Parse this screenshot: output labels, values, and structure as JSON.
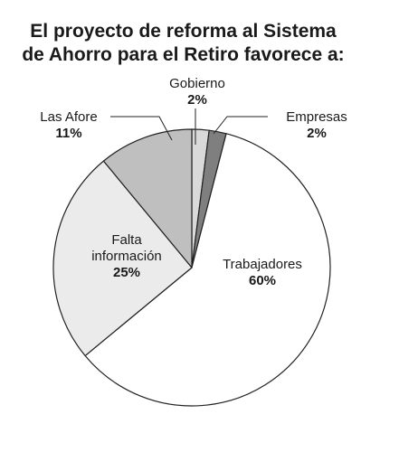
{
  "title_lines": [
    "El proyecto de reforma al Sistema",
    "de Ahorro para el Retiro favorece a:"
  ],
  "chart_data": {
    "type": "pie",
    "title": "El proyecto de reforma al Sistema de Ahorro para el Retiro favorece a:",
    "slices": [
      {
        "label": "Gobierno",
        "value": 2,
        "value_label": "2%",
        "color": "#d9d9d9"
      },
      {
        "label": "Empresas",
        "value": 2,
        "value_label": "2%",
        "color": "#7f7f7f"
      },
      {
        "label": "Trabajadores",
        "value": 60,
        "value_label": "60%",
        "color": "#ffffff"
      },
      {
        "label": "Falta información",
        "value": 25,
        "value_label": "25%",
        "color": "#ebebeb"
      },
      {
        "label": "Las Afore",
        "value": 11,
        "value_label": "11%",
        "color": "#bfbfbf"
      }
    ],
    "stroke_color": "#222222"
  }
}
